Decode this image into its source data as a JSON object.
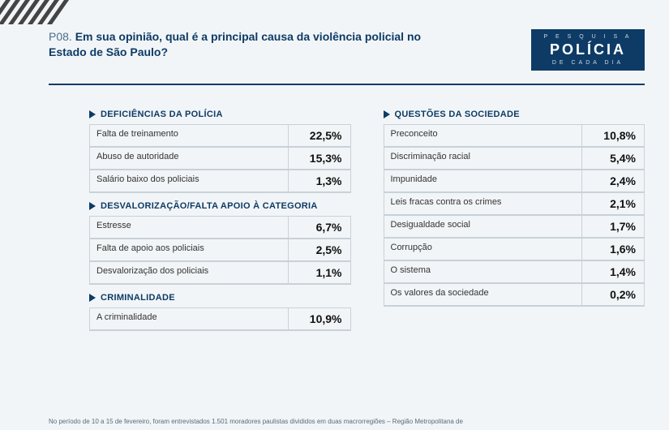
{
  "header": {
    "question_code": "P08.",
    "question_text": "Em sua opinião, qual é a principal causa da violência policial no Estado de São Paulo?"
  },
  "logo": {
    "top": "P E S Q U I S A",
    "main": "POLÍCIA",
    "bottom": "DE CADA DIA"
  },
  "columns": [
    {
      "sections": [
        {
          "title": "DEFICIÊNCIAS DA POLÍCIA",
          "rows": [
            {
              "label": "Falta de treinamento",
              "value": "22,5%"
            },
            {
              "label": "Abuso de autoridade",
              "value": "15,3%"
            },
            {
              "label": "Salário baixo dos policiais",
              "value": "1,3%"
            }
          ]
        },
        {
          "title": "DESVALORIZAÇÃO/FALTA APOIO À CATEGORIA",
          "rows": [
            {
              "label": "Estresse",
              "value": "6,7%"
            },
            {
              "label": "Falta de apoio aos policiais",
              "value": "2,5%"
            },
            {
              "label": "Desvalorização dos policiais",
              "value": "1,1%"
            }
          ]
        },
        {
          "title": "CRIMINALIDADE",
          "rows": [
            {
              "label": "A criminalidade",
              "value": "10,9%"
            }
          ]
        }
      ]
    },
    {
      "sections": [
        {
          "title": "QUESTÕES DA SOCIEDADE",
          "rows": [
            {
              "label": "Preconceito",
              "value": "10,8%"
            },
            {
              "label": "Discriminação racial",
              "value": "5,4%"
            },
            {
              "label": "Impunidade",
              "value": "2,4%"
            },
            {
              "label": "Leis fracas contra os crimes",
              "value": "2,1%"
            },
            {
              "label": "Desigualdade social",
              "value": "1,7%"
            },
            {
              "label": "Corrupção",
              "value": "1,6%"
            },
            {
              "label": "O sistema",
              "value": "1,4%"
            },
            {
              "label": "Os valores da sociedade",
              "value": "0,2%"
            }
          ]
        }
      ]
    }
  ],
  "footnote": "No período de 10 a 15 de fevereiro, foram entrevistados 1.501 moradores paulistas divididos em duas macrorregiões – Região Metropolitana de"
}
